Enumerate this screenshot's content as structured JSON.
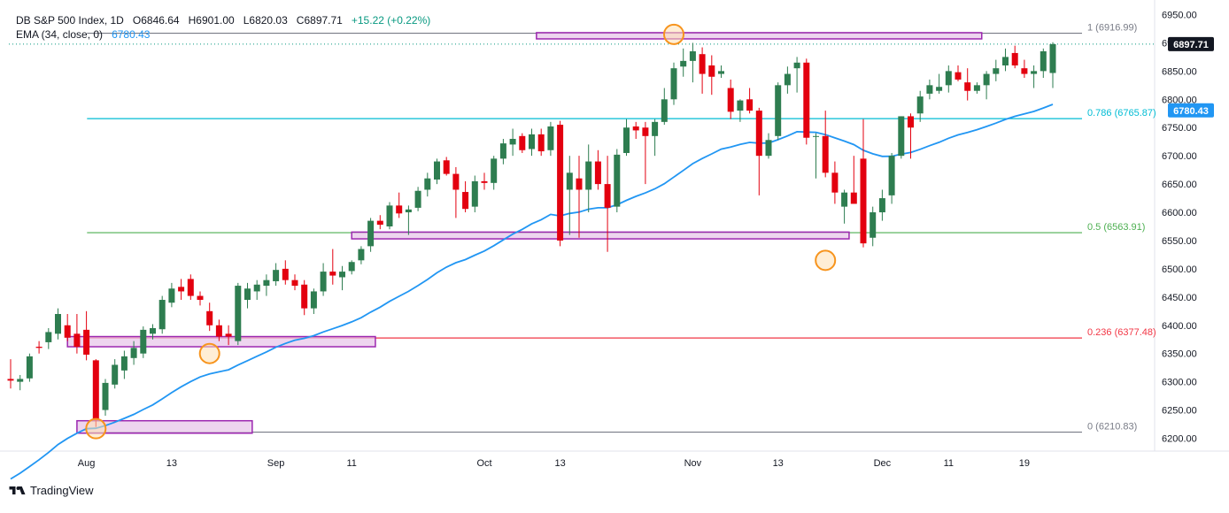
{
  "header": {
    "symbol": "DB S&P 500 Index, 1D",
    "o_label": "O",
    "o": "6846.64",
    "h_label": "H",
    "h": "6901.00",
    "l_label": "L",
    "l": "6820.03",
    "c_label": "C",
    "c": "6897.71",
    "change": "+15.22 (+0.22%)",
    "ema_label": "EMA (34, close, 0)",
    "ema_value": "6780.43"
  },
  "brand": {
    "name": "TradingView"
  },
  "colors": {
    "up": "#2e7d50",
    "down": "#e3000f",
    "ema": "#2196f3",
    "zone_fill": "#e8c7ea",
    "zone_stroke": "#9c27b0",
    "fib_1": "#787b86",
    "fib_786": "#00bcd4",
    "fib_5": "#4caf50",
    "fib_236": "#f23645",
    "fib_0": "#787b86",
    "circle": "#f7941d"
  },
  "chart_data": {
    "type": "candlestick",
    "ylim": [
      6180,
      6955
    ],
    "y_ticks": [
      6200,
      6250,
      6300,
      6350,
      6400,
      6450,
      6500,
      6550,
      6600,
      6650,
      6700,
      6750,
      6800,
      6850,
      6900,
      6950
    ],
    "x_ticks": [
      {
        "label": "Aug",
        "i": 8
      },
      {
        "label": "13",
        "i": 17
      },
      {
        "label": "Sep",
        "i": 28
      },
      {
        "label": "11",
        "i": 36
      },
      {
        "label": "Oct",
        "i": 50
      },
      {
        "label": "13",
        "i": 58
      },
      {
        "label": "Nov",
        "i": 72
      },
      {
        "label": "13",
        "i": 81
      },
      {
        "label": "Dec",
        "i": 92
      },
      {
        "label": "11",
        "i": 99
      },
      {
        "label": "19",
        "i": 107
      }
    ],
    "last_price_label": "6897.71",
    "ema_label": "6780.43",
    "fib_levels": [
      {
        "level": "1",
        "value": 6916.99,
        "label": "1 (6916.99)",
        "color_key": "fib_1"
      },
      {
        "level": "0.786",
        "value": 6765.87,
        "label": "0.786 (6765.87)",
        "color_key": "fib_786"
      },
      {
        "level": "0.5",
        "value": 6563.91,
        "label": "0.5 (6563.91)",
        "color_key": "fib_5"
      },
      {
        "level": "0.236",
        "value": 6377.48,
        "label": "0.236 (6377.48)",
        "color_key": "fib_236"
      },
      {
        "level": "0",
        "value": 6210.83,
        "label": "0 (6210.83)",
        "color_key": "fib_0"
      }
    ],
    "zones": [
      {
        "i_from": 55.5,
        "i_to": 102.5,
        "y_top": 6918,
        "y_bottom": 6907
      },
      {
        "i_from": 36.0,
        "i_to": 88.5,
        "y_top": 6565,
        "y_bottom": 6553
      },
      {
        "i_from": 6.0,
        "i_to": 38.5,
        "y_top": 6380,
        "y_bottom": 6362
      },
      {
        "i_from": 7.0,
        "i_to": 25.5,
        "y_top": 6231,
        "y_bottom": 6209
      }
    ],
    "markers": [
      {
        "i": 70,
        "y": 6915
      },
      {
        "i": 86,
        "y": 6515
      },
      {
        "i": 21,
        "y": 6350
      },
      {
        "i": 9,
        "y": 6217
      }
    ],
    "candles": [
      [
        6305,
        6340,
        6288,
        6302
      ],
      [
        6300,
        6312,
        6285,
        6305
      ],
      [
        6306,
        6350,
        6300,
        6345
      ],
      [
        6362,
        6372,
        6350,
        6360
      ],
      [
        6370,
        6395,
        6358,
        6388
      ],
      [
        6385,
        6430,
        6375,
        6420
      ],
      [
        6400,
        6420,
        6372,
        6378
      ],
      [
        6385,
        6420,
        6350,
        6362
      ],
      [
        6392,
        6425,
        6338,
        6348
      ],
      [
        6338,
        6340,
        6220,
        6232
      ],
      [
        6250,
        6305,
        6240,
        6298
      ],
      [
        6295,
        6340,
        6288,
        6330
      ],
      [
        6320,
        6355,
        6305,
        6345
      ],
      [
        6342,
        6372,
        6330,
        6360
      ],
      [
        6350,
        6398,
        6342,
        6392
      ],
      [
        6385,
        6402,
        6375,
        6395
      ],
      [
        6393,
        6452,
        6385,
        6445
      ],
      [
        6440,
        6475,
        6432,
        6465
      ],
      [
        6468,
        6482,
        6445,
        6460
      ],
      [
        6482,
        6490,
        6445,
        6452
      ],
      [
        6452,
        6460,
        6435,
        6445
      ],
      [
        6425,
        6440,
        6390,
        6400
      ],
      [
        6400,
        6410,
        6372,
        6380
      ],
      [
        6385,
        6400,
        6365,
        6380
      ],
      [
        6372,
        6475,
        6365,
        6470
      ],
      [
        6445,
        6475,
        6430,
        6465
      ],
      [
        6460,
        6480,
        6445,
        6472
      ],
      [
        6470,
        6490,
        6452,
        6480
      ],
      [
        6478,
        6510,
        6470,
        6498
      ],
      [
        6500,
        6515,
        6472,
        6480
      ],
      [
        6480,
        6490,
        6462,
        6470
      ],
      [
        6472,
        6480,
        6418,
        6430
      ],
      [
        6430,
        6465,
        6420,
        6460
      ],
      [
        6460,
        6510,
        6452,
        6495
      ],
      [
        6495,
        6535,
        6472,
        6488
      ],
      [
        6485,
        6505,
        6462,
        6495
      ],
      [
        6496,
        6515,
        6490,
        6512
      ],
      [
        6515,
        6540,
        6508,
        6535
      ],
      [
        6540,
        6590,
        6530,
        6585
      ],
      [
        6585,
        6595,
        6570,
        6578
      ],
      [
        6575,
        6618,
        6570,
        6612
      ],
      [
        6612,
        6635,
        6590,
        6598
      ],
      [
        6600,
        6612,
        6560,
        6605
      ],
      [
        6608,
        6645,
        6602,
        6638
      ],
      [
        6640,
        6670,
        6628,
        6660
      ],
      [
        6658,
        6695,
        6650,
        6690
      ],
      [
        6692,
        6698,
        6665,
        6668
      ],
      [
        6668,
        6680,
        6590,
        6640
      ],
      [
        6636,
        6655,
        6600,
        6606
      ],
      [
        6610,
        6665,
        6600,
        6655
      ],
      [
        6655,
        6670,
        6640,
        6652
      ],
      [
        6652,
        6700,
        6640,
        6695
      ],
      [
        6695,
        6730,
        6685,
        6722
      ],
      [
        6720,
        6748,
        6700,
        6730
      ],
      [
        6735,
        6740,
        6705,
        6710
      ],
      [
        6712,
        6748,
        6700,
        6738
      ],
      [
        6738,
        6748,
        6700,
        6708
      ],
      [
        6710,
        6760,
        6700,
        6752
      ],
      [
        6755,
        6762,
        6540,
        6550
      ],
      [
        6640,
        6700,
        6560,
        6670
      ],
      [
        6660,
        6700,
        6555,
        6640
      ],
      [
        6640,
        6720,
        6600,
        6690
      ],
      [
        6690,
        6710,
        6640,
        6650
      ],
      [
        6650,
        6700,
        6530,
        6608
      ],
      [
        6610,
        6712,
        6600,
        6702
      ],
      [
        6705,
        6765,
        6700,
        6750
      ],
      [
        6752,
        6760,
        6730,
        6745
      ],
      [
        6750,
        6760,
        6650,
        6735
      ],
      [
        6735,
        6765,
        6700,
        6760
      ],
      [
        6760,
        6820,
        6755,
        6800
      ],
      [
        6800,
        6865,
        6790,
        6855
      ],
      [
        6858,
        6890,
        6840,
        6868
      ],
      [
        6868,
        6900,
        6830,
        6885
      ],
      [
        6880,
        6892,
        6810,
        6845
      ],
      [
        6860,
        6878,
        6808,
        6840
      ],
      [
        6845,
        6860,
        6838,
        6850
      ],
      [
        6820,
        6835,
        6765,
        6778
      ],
      [
        6780,
        6800,
        6760,
        6798
      ],
      [
        6800,
        6820,
        6775,
        6780
      ],
      [
        6780,
        6785,
        6630,
        6700
      ],
      [
        6700,
        6740,
        6695,
        6728
      ],
      [
        6735,
        6830,
        6728,
        6825
      ],
      [
        6825,
        6858,
        6810,
        6845
      ],
      [
        6855,
        6875,
        6812,
        6865
      ],
      [
        6865,
        6872,
        6720,
        6732
      ],
      [
        6735,
        6740,
        6660,
        6735
      ],
      [
        6735,
        6780,
        6662,
        6670
      ],
      [
        6670,
        6690,
        6615,
        6635
      ],
      [
        6610,
        6640,
        6580,
        6635
      ],
      [
        6635,
        6700,
        6620,
        6615
      ],
      [
        6695,
        6765,
        6538,
        6545
      ],
      [
        6555,
        6610,
        6540,
        6600
      ],
      [
        6600,
        6640,
        6585,
        6625
      ],
      [
        6630,
        6705,
        6615,
        6700
      ],
      [
        6700,
        6770,
        6695,
        6770
      ],
      [
        6770,
        6775,
        6695,
        6750
      ],
      [
        6775,
        6815,
        6760,
        6805
      ],
      [
        6810,
        6835,
        6800,
        6825
      ],
      [
        6815,
        6845,
        6810,
        6822
      ],
      [
        6825,
        6860,
        6812,
        6850
      ],
      [
        6848,
        6860,
        6832,
        6835
      ],
      [
        6830,
        6855,
        6798,
        6815
      ],
      [
        6815,
        6830,
        6810,
        6825
      ],
      [
        6825,
        6850,
        6800,
        6845
      ],
      [
        6845,
        6870,
        6832,
        6855
      ],
      [
        6860,
        6890,
        6850,
        6875
      ],
      [
        6882,
        6895,
        6855,
        6860
      ],
      [
        6855,
        6870,
        6838,
        6845
      ],
      [
        6845,
        6860,
        6820,
        6850
      ],
      [
        6850,
        6890,
        6838,
        6885
      ],
      [
        6846.64,
        6901.0,
        6820.03,
        6897.71
      ]
    ]
  }
}
